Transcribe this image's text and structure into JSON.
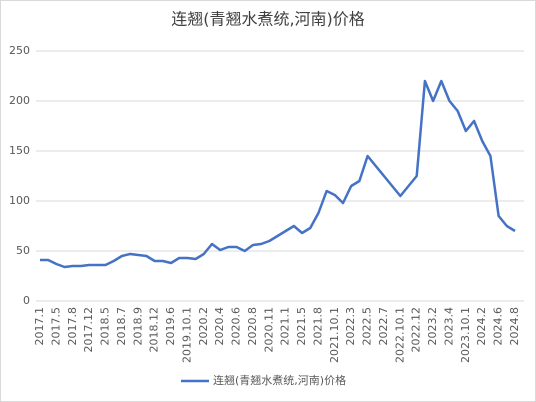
{
  "chart_data": {
    "type": "line",
    "title": "连翘(青翘水煮统,河南)价格",
    "categories": [
      "2017.1",
      null,
      "2017.5",
      null,
      "2017.8",
      null,
      "2017.12",
      null,
      "2018.5",
      null,
      "2018.7",
      null,
      "2018.9",
      null,
      "2018.12",
      null,
      "2019.6",
      null,
      "2019.10.1",
      null,
      "2020.2",
      null,
      "2020.4",
      null,
      "2020.6",
      null,
      "2020.8",
      null,
      "2020.11",
      null,
      "2021.1",
      null,
      "2021.5",
      null,
      "2021.8",
      null,
      "2021.10.1",
      null,
      "2022.3",
      null,
      "2022.5",
      null,
      "2022.7",
      null,
      "2022.10.1",
      null,
      "2022.12",
      null,
      "2023.2",
      null,
      "2023.4",
      null,
      "2023.10.1",
      null,
      "2024.2",
      null,
      "2024.6",
      null,
      "2024.8"
    ],
    "series": [
      {
        "name": "连翘(青翘水煮统,河南)价格",
        "color": "#4472c4",
        "values": [
          41,
          41,
          37,
          34,
          35,
          35,
          36,
          36,
          36,
          40,
          45,
          47,
          46,
          45,
          40,
          40,
          38,
          43,
          43,
          42,
          47,
          57,
          51,
          54,
          54,
          50,
          56,
          57,
          60,
          65,
          70,
          75,
          68,
          73,
          88,
          110,
          106,
          98,
          115,
          120,
          145,
          135,
          125,
          115,
          105,
          115,
          125,
          220,
          200,
          220,
          200,
          190,
          170,
          180,
          160,
          145,
          85,
          75,
          70
        ]
      }
    ],
    "ylim": [
      0,
      250
    ],
    "yticks": [
      0,
      50,
      100,
      150,
      200,
      250
    ],
    "grid": true,
    "legend": "bottom"
  }
}
